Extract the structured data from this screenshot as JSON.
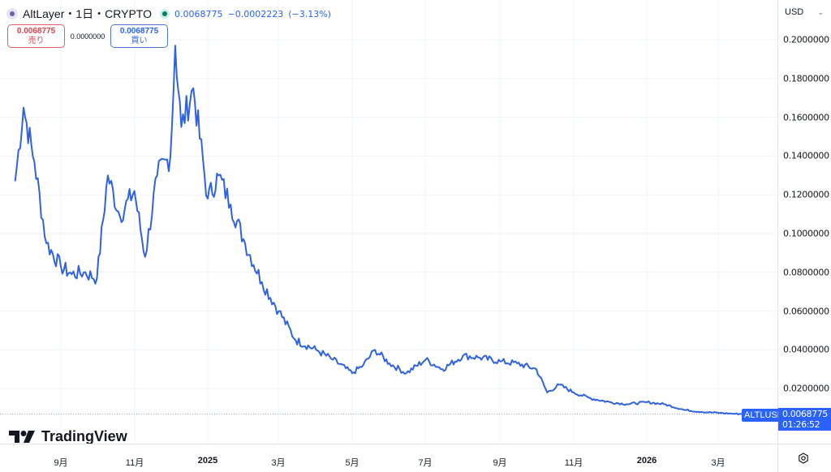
{
  "header": {
    "title": "AltLayer・1日・CRYPTO",
    "last_price": "0.0068775",
    "change": "−0.0002223",
    "change_pct": "(−3.13%)",
    "status": "market-open"
  },
  "trade": {
    "sell_price": "0.0068775",
    "sell_label": "売り",
    "spread": "0.0000000",
    "buy_price": "0.0068775",
    "buy_label": "買い"
  },
  "axis": {
    "currency": "USD",
    "y_ticks": [
      "0.2000000",
      "0.1800000",
      "0.1600000",
      "0.1400000",
      "0.1200000",
      "0.1000000",
      "0.0800000",
      "0.0600000",
      "0.0400000",
      "0.0200000"
    ],
    "x_ticks": [
      {
        "label": "9月",
        "bold": false
      },
      {
        "label": "11月",
        "bold": false
      },
      {
        "label": "2025",
        "bold": true
      },
      {
        "label": "3月",
        "bold": false
      },
      {
        "label": "5月",
        "bold": false
      },
      {
        "label": "7月",
        "bold": false
      },
      {
        "label": "9月",
        "bold": false
      },
      {
        "label": "11月",
        "bold": false
      },
      {
        "label": "2026",
        "bold": true
      },
      {
        "label": "3月",
        "bold": false
      }
    ]
  },
  "price_tag": {
    "symbol": "ALTLUSD",
    "price": "0.0068775",
    "countdown": "01:26:52"
  },
  "branding": {
    "logo_text": "TradingView"
  },
  "colors": {
    "line": "#2f62e0",
    "accent": "#2962ff",
    "sell": "#e0404a",
    "grid": "#f0f3fa"
  },
  "chart_data": {
    "type": "line",
    "title": "AltLayer・1日・CRYPTO",
    "series": [
      {
        "name": "ALTLUSD",
        "x": [
          "2024-07-25",
          "2024-08-01",
          "2024-08-10",
          "2024-08-20",
          "2024-09-01",
          "2024-09-10",
          "2024-09-20",
          "2024-10-01",
          "2024-10-10",
          "2024-10-20",
          "2024-11-01",
          "2024-11-10",
          "2024-11-20",
          "2024-12-01",
          "2024-12-05",
          "2024-12-10",
          "2024-12-20",
          "2025-01-01",
          "2025-01-10",
          "2025-01-20",
          "2025-02-01",
          "2025-02-15",
          "2025-03-01",
          "2025-03-15",
          "2025-04-01",
          "2025-04-15",
          "2025-05-01",
          "2025-05-10",
          "2025-05-20",
          "2025-06-01",
          "2025-06-15",
          "2025-07-01",
          "2025-07-15",
          "2025-08-01",
          "2025-08-15",
          "2025-09-01",
          "2025-09-15",
          "2025-10-01",
          "2025-10-10",
          "2025-10-20",
          "2025-11-01",
          "2025-11-15",
          "2025-12-01",
          "2025-12-15",
          "2026-01-01",
          "2026-01-15",
          "2026-02-01",
          "2026-02-15",
          "2026-03-01",
          "2026-03-15",
          "2026-04-01"
        ],
        "values": [
          0.127,
          0.165,
          0.137,
          0.095,
          0.083,
          0.079,
          0.08,
          0.077,
          0.13,
          0.109,
          0.122,
          0.088,
          0.13,
          0.14,
          0.197,
          0.155,
          0.175,
          0.118,
          0.13,
          0.115,
          0.095,
          0.075,
          0.06,
          0.045,
          0.04,
          0.035,
          0.028,
          0.032,
          0.04,
          0.033,
          0.028,
          0.035,
          0.03,
          0.037,
          0.036,
          0.034,
          0.033,
          0.03,
          0.018,
          0.022,
          0.018,
          0.015,
          0.013,
          0.012,
          0.013,
          0.012,
          0.009,
          0.008,
          0.0075,
          0.007,
          0.0068775
        ]
      }
    ],
    "xlabel": "",
    "ylabel": "USD",
    "ylim": [
      0.0,
      0.21
    ],
    "y_ticks": [
      0.02,
      0.04,
      0.06,
      0.08,
      0.1,
      0.12,
      0.14,
      0.16,
      0.18,
      0.2
    ],
    "x_tick_labels": [
      "9月",
      "11月",
      "2025",
      "3月",
      "5月",
      "7月",
      "9月",
      "11月",
      "2026",
      "3月"
    ],
    "grid": true,
    "last_value": 0.0068775
  }
}
